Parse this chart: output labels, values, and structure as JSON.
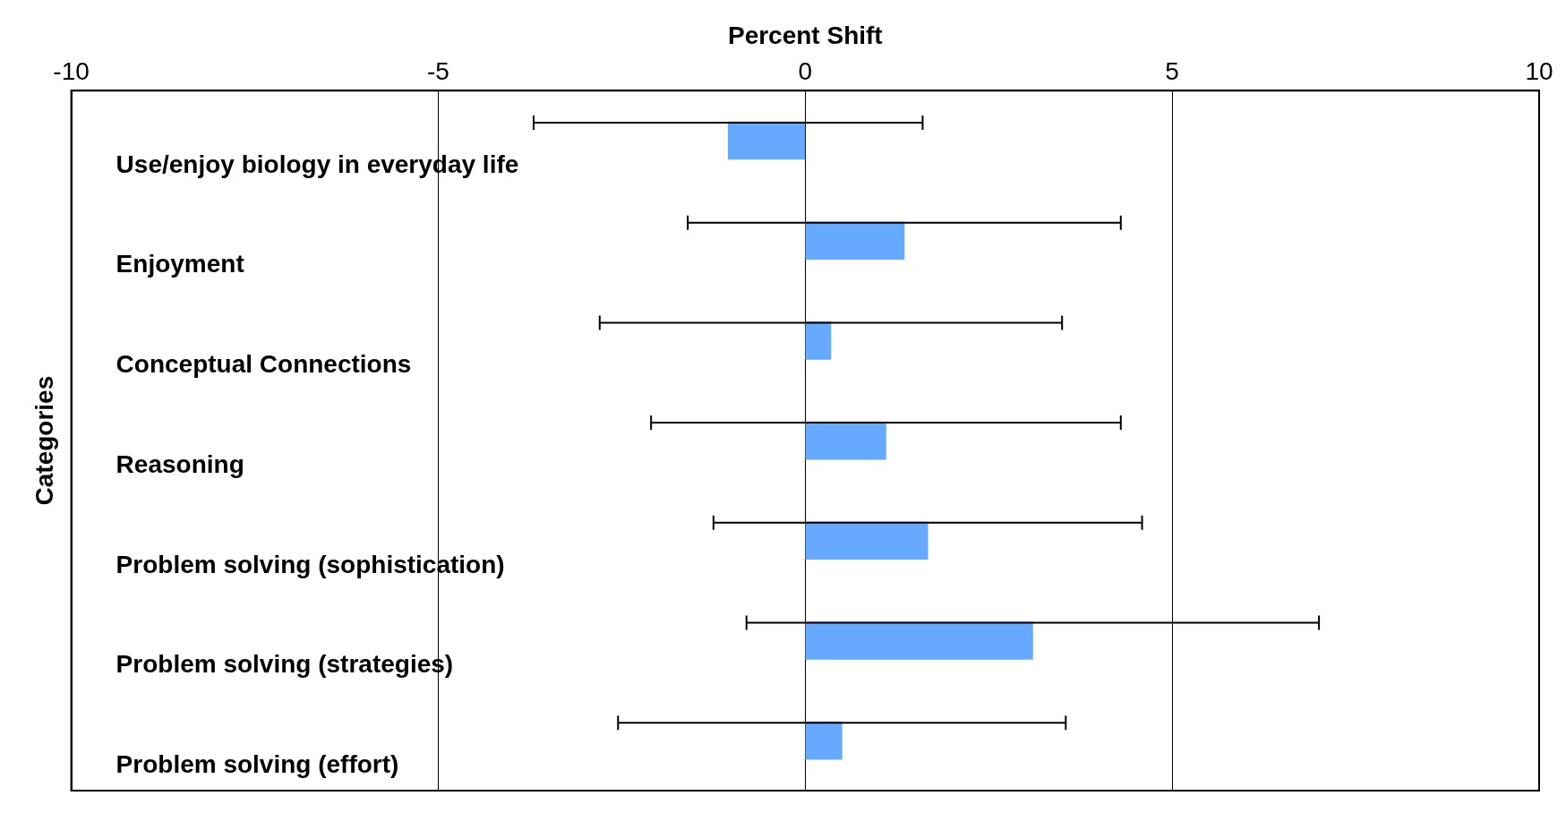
{
  "chart_data": {
    "type": "bar",
    "orientation": "horizontal",
    "xlabel": "Percent Shift",
    "ylabel": "Categories",
    "categories": [
      "Use/enjoy biology in everyday life",
      "Enjoyment",
      "Conceptual Connections",
      "Reasoning",
      "Problem solving (sophistication)",
      "Problem solving (strategies)",
      "Problem solving (effort)"
    ],
    "values": [
      -1.05,
      1.35,
      0.35,
      1.1,
      1.67,
      3.1,
      0.5
    ],
    "errors": [
      2.65,
      2.95,
      3.15,
      3.2,
      2.92,
      3.9,
      3.05
    ],
    "color": "#66aaff",
    "xlim": [
      -10,
      10
    ],
    "xticks": [
      -10,
      -5,
      0,
      5,
      10
    ],
    "grid": "x",
    "legend": false
  }
}
